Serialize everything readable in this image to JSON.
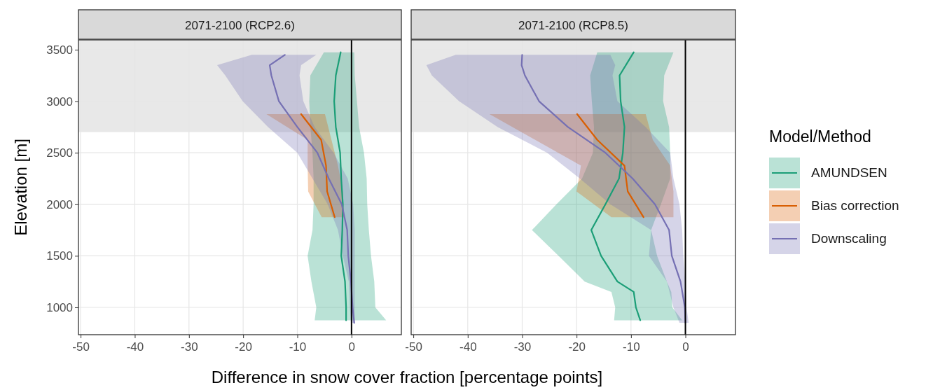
{
  "chart_data": [
    {
      "type": "line",
      "title": "2071-2100 (RCP2.6)",
      "orientation": "horizontal",
      "xlabel": "Difference in snow cover fraction [percentage points]",
      "ylabel": "Elevation [m]",
      "xlim": [
        -50.4,
        9.2
      ],
      "xticks": [
        -50,
        -40,
        -30,
        -20,
        -10,
        0
      ],
      "ylim": [
        735,
        3595
      ],
      "yticks": [
        1000,
        1500,
        2000,
        2500,
        3000,
        3500
      ],
      "grid": true,
      "legend": false,
      "bands": [
        {
          "axis": "y",
          "from": 2700,
          "to": 3595,
          "color": "#d9d9d9"
        }
      ],
      "ref_lines": [
        {
          "axis": "x",
          "value": 0,
          "color": "#000000"
        }
      ],
      "series": [
        {
          "color": "#1b9e77",
          "x": [
            3475,
            3250,
            3000,
            2750,
            2500,
            2250,
            2000,
            1750,
            1500,
            1250,
            1000,
            875
          ],
          "values": [
            -2.0,
            -2.9,
            -3.2,
            -2.9,
            -2.1,
            -1.9,
            -1.6,
            -1.7,
            -1.9,
            -1.2,
            -1.0,
            -1.0
          ],
          "lower": [
            -5.1,
            -7.6,
            -7.8,
            -7.6,
            -7.2,
            -7.0,
            -7.0,
            -7.2,
            -8.1,
            -7.4,
            -6.5,
            -6.8
          ],
          "upper": [
            0.5,
            0.6,
            1.0,
            1.4,
            2.3,
            2.8,
            2.9,
            3.2,
            3.6,
            4.2,
            4.4,
            6.4
          ]
        },
        {
          "color": "#d95f02",
          "x": [
            2875,
            2625,
            2375,
            2125,
            1875
          ],
          "values": [
            -9.3,
            -5.6,
            -4.7,
            -4.5,
            -3.1
          ],
          "lower": [
            -15.7,
            -8.1,
            -8.1,
            -8.0,
            -5.5
          ],
          "upper": [
            -4.9,
            -3.7,
            -2.5,
            -1.6,
            -1.4
          ]
        },
        {
          "color": "#7570b3",
          "x": [
            3450,
            3350,
            3250,
            3000,
            2750,
            2500,
            2250,
            2000,
            1750,
            1500,
            1250,
            1000,
            850
          ],
          "values": [
            -12.3,
            -15.1,
            -14.8,
            -13.4,
            -10.0,
            -6.3,
            -4.2,
            -1.8,
            -0.8,
            -0.6,
            -0.1,
            0.2,
            0.5
          ],
          "lower": [
            -18.4,
            -24.8,
            -23.3,
            -20.1,
            -15.4,
            -10.0,
            -7.2,
            -4.4,
            -2.5,
            -1.6,
            -0.5,
            -0.3,
            -0.1
          ],
          "upper": [
            -6.5,
            -9.3,
            -9.6,
            -8.9,
            -6.8,
            -3.3,
            -0.7,
            0.3,
            0.6,
            0.6,
            0.6,
            0.6,
            0.6
          ]
        }
      ]
    },
    {
      "type": "line",
      "title": "2071-2100 (RCP8.5)",
      "orientation": "horizontal",
      "xlim": [
        -50.4,
        9.2
      ],
      "xticks": [
        -50,
        -40,
        -30,
        -20,
        -10,
        0
      ],
      "ylim": [
        735,
        3595
      ],
      "yticks": [
        1000,
        1500,
        2000,
        2500,
        3000,
        3500
      ],
      "tick_labels": "x",
      "grid": true,
      "legend": "right",
      "legend_title": "Model/Method",
      "bands": [
        {
          "axis": "y",
          "from": 2700,
          "to": 3595,
          "color": "#d9d9d9"
        }
      ],
      "ref_lines": [
        {
          "axis": "x",
          "value": 0,
          "color": "#000000"
        }
      ],
      "series": [
        {
          "name": "AMUNDSEN",
          "color": "#1b9e77",
          "x": [
            3475,
            3250,
            3000,
            2750,
            2500,
            2250,
            2000,
            1750,
            1500,
            1250,
            1150,
            1000,
            875
          ],
          "values": [
            -9.5,
            -12.1,
            -11.9,
            -11.2,
            -11.5,
            -12.2,
            -14.7,
            -17.3,
            -15.5,
            -12.5,
            -9.5,
            -9.1,
            -8.3
          ],
          "lower": [
            -16.2,
            -17.5,
            -17.2,
            -16.8,
            -17.0,
            -19.0,
            -23.7,
            -28.2,
            -23.3,
            -18.5,
            -13.6,
            -12.9,
            -13.1
          ],
          "upper": [
            -2.2,
            -3.9,
            -4.1,
            -3.0,
            -2.8,
            -2.8,
            -4.5,
            -6.3,
            -5.2,
            -3.4,
            -2.6,
            -2.4,
            -0.6
          ]
        },
        {
          "name": "Bias correction",
          "color": "#d95f02",
          "x": [
            2875,
            2625,
            2375,
            2125,
            1875
          ],
          "values": [
            -19.9,
            -16.2,
            -11.2,
            -10.6,
            -7.7
          ],
          "lower": [
            -36.0,
            -27.6,
            -19.2,
            -20.0,
            -13.6
          ],
          "upper": [
            -7.3,
            -6.0,
            -2.8,
            -2.2,
            -2.2
          ]
        },
        {
          "name": "Downscaling",
          "color": "#7570b3",
          "x": [
            3450,
            3350,
            3250,
            3000,
            2750,
            2500,
            2250,
            2000,
            1750,
            1500,
            1250,
            1000,
            850
          ],
          "values": [
            -30.0,
            -30.1,
            -29.5,
            -26.9,
            -21.6,
            -14.7,
            -9.7,
            -5.6,
            -3.0,
            -2.5,
            -0.9,
            -0.1,
            0
          ],
          "lower": [
            -42.2,
            -47.6,
            -46.6,
            -41.6,
            -34.5,
            -25.4,
            -19.4,
            -13.8,
            -6.3,
            -6.7,
            -3.4,
            -2.2,
            -1.1
          ],
          "upper": [
            -13.8,
            -12.9,
            -13.4,
            -12.5,
            -7.3,
            -2.8,
            -2.2,
            -1.1,
            -0.6,
            -0.4,
            0,
            0.2,
            0.6
          ]
        }
      ]
    }
  ]
}
